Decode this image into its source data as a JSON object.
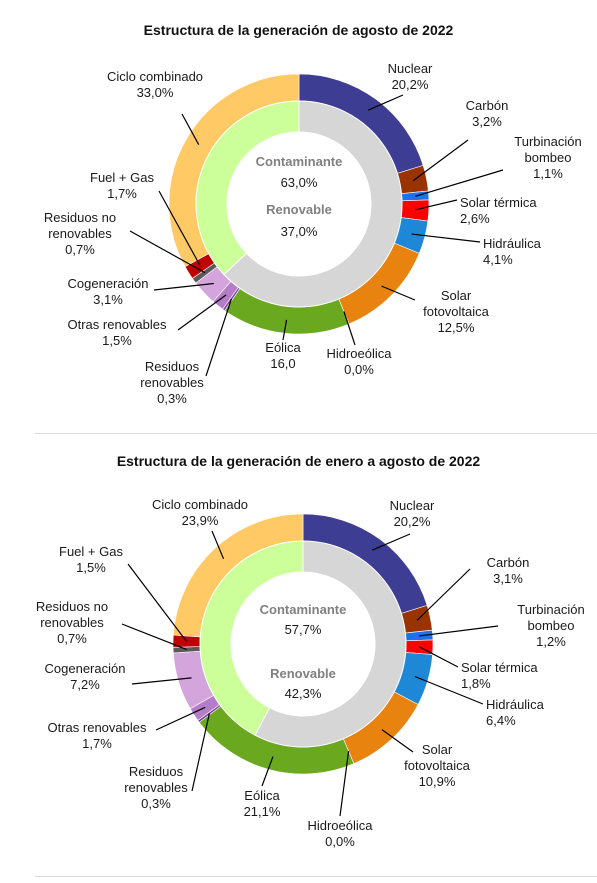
{
  "chart_data": [
    {
      "type": "donut",
      "title": "Estructura de la generación de agosto de 2022",
      "inner_ring": [
        {
          "name": "Contaminante",
          "value_label": "63,0%",
          "value": 63.0,
          "color": "#d6d6d6"
        },
        {
          "name": "Renovable",
          "value_label": "37,0%",
          "value": 37.0,
          "color": "#ccff99"
        }
      ],
      "outer_ring": [
        {
          "name": "Nuclear",
          "value_label": "20,2%",
          "value": 20.2,
          "color": "#3e3d94"
        },
        {
          "name": "Carbón",
          "value_label": "3,2%",
          "value": 3.2,
          "color": "#993300"
        },
        {
          "name": "Turbinación bombeo",
          "name_lines": [
            "Turbinación",
            "bombeo"
          ],
          "value_label": "1,1%",
          "value": 1.1,
          "color": "#1a73e8"
        },
        {
          "name": "Solar térmica",
          "value_label": "2,6%",
          "value": 2.6,
          "color": "#ff0000"
        },
        {
          "name": "Hidráulica",
          "value_label": "4,1%",
          "value": 4.1,
          "color": "#1e88d6"
        },
        {
          "name": "Solar fotovoltaica",
          "name_lines": [
            "Solar",
            "fotovoltaica"
          ],
          "value_label": "12,5%",
          "value": 12.5,
          "color": "#e8830f"
        },
        {
          "name": "Hidroeólica",
          "value_label": "0,0%",
          "value": 0.0,
          "color": "#2e7d32"
        },
        {
          "name": "Eólica",
          "value_label": "16,0",
          "value": 16.0,
          "color": "#6aa81f"
        },
        {
          "name": "Residuos renovables",
          "name_lines": [
            "Residuos",
            "renovables"
          ],
          "value_label": "0,3%",
          "value": 0.3,
          "color": "#7b3f9e"
        },
        {
          "name": "Otras renovables",
          "value_label": "1,5%",
          "value": 1.5,
          "color": "#b57cc8"
        },
        {
          "name": "Cogeneración",
          "value_label": "3,1%",
          "value": 3.1,
          "color": "#d4a5dc"
        },
        {
          "name": "Residuos no renovables",
          "name_lines": [
            "Residuos no",
            "renovables"
          ],
          "value_label": "0,7%",
          "value": 0.7,
          "color": "#595959"
        },
        {
          "name": "Fuel + Gas",
          "value_label": "1,7%",
          "value": 1.7,
          "color": "#c00000"
        },
        {
          "name": "Ciclo combinado",
          "value_label": "33,0%",
          "value": 33.0,
          "color": "#ffc966"
        }
      ]
    },
    {
      "type": "donut",
      "title": "Estructura de la generación de enero a agosto de 2022",
      "inner_ring": [
        {
          "name": "Contaminante",
          "value_label": "57,7%",
          "value": 57.7,
          "color": "#d6d6d6"
        },
        {
          "name": "Renovable",
          "value_label": "42,3%",
          "value": 42.3,
          "color": "#ccff99"
        }
      ],
      "outer_ring": [
        {
          "name": "Nuclear",
          "value_label": "20,2%",
          "value": 20.2,
          "color": "#3e3d94"
        },
        {
          "name": "Carbón",
          "value_label": "3,1%",
          "value": 3.1,
          "color": "#993300"
        },
        {
          "name": "Turbinación bombeo",
          "name_lines": [
            "Turbinación",
            "bombeo"
          ],
          "value_label": "1,2%",
          "value": 1.2,
          "color": "#1a73e8"
        },
        {
          "name": "Solar térmica",
          "value_label": "1,8%",
          "value": 1.8,
          "color": "#ff0000"
        },
        {
          "name": "Hidráulica",
          "value_label": "6,4%",
          "value": 6.4,
          "color": "#1e88d6"
        },
        {
          "name": "Solar fotovoltaica",
          "name_lines": [
            "Solar",
            "fotovoltaica"
          ],
          "value_label": "10,9%",
          "value": 10.9,
          "color": "#e8830f"
        },
        {
          "name": "Hidroeólica",
          "value_label": "0,0%",
          "value": 0.0,
          "color": "#2e7d32"
        },
        {
          "name": "Eólica",
          "value_label": "21,1%",
          "value": 21.1,
          "color": "#6aa81f"
        },
        {
          "name": "Residuos renovables",
          "name_lines": [
            "Residuos",
            "renovables"
          ],
          "value_label": "0,3%",
          "value": 0.3,
          "color": "#7b3f9e"
        },
        {
          "name": "Otras renovables",
          "value_label": "1,7%",
          "value": 1.7,
          "color": "#b57cc8"
        },
        {
          "name": "Cogeneración",
          "value_label": "7,2%",
          "value": 7.2,
          "color": "#d4a5dc"
        },
        {
          "name": "Residuos no renovables",
          "name_lines": [
            "Residuos no",
            "renovables"
          ],
          "value_label": "0,7%",
          "value": 0.7,
          "color": "#595959"
        },
        {
          "name": "Fuel + Gas",
          "value_label": "1,5%",
          "value": 1.5,
          "color": "#c00000"
        },
        {
          "name": "Ciclo combinado",
          "value_label": "23,9%",
          "value": 23.9,
          "color": "#ffc966"
        }
      ]
    }
  ]
}
